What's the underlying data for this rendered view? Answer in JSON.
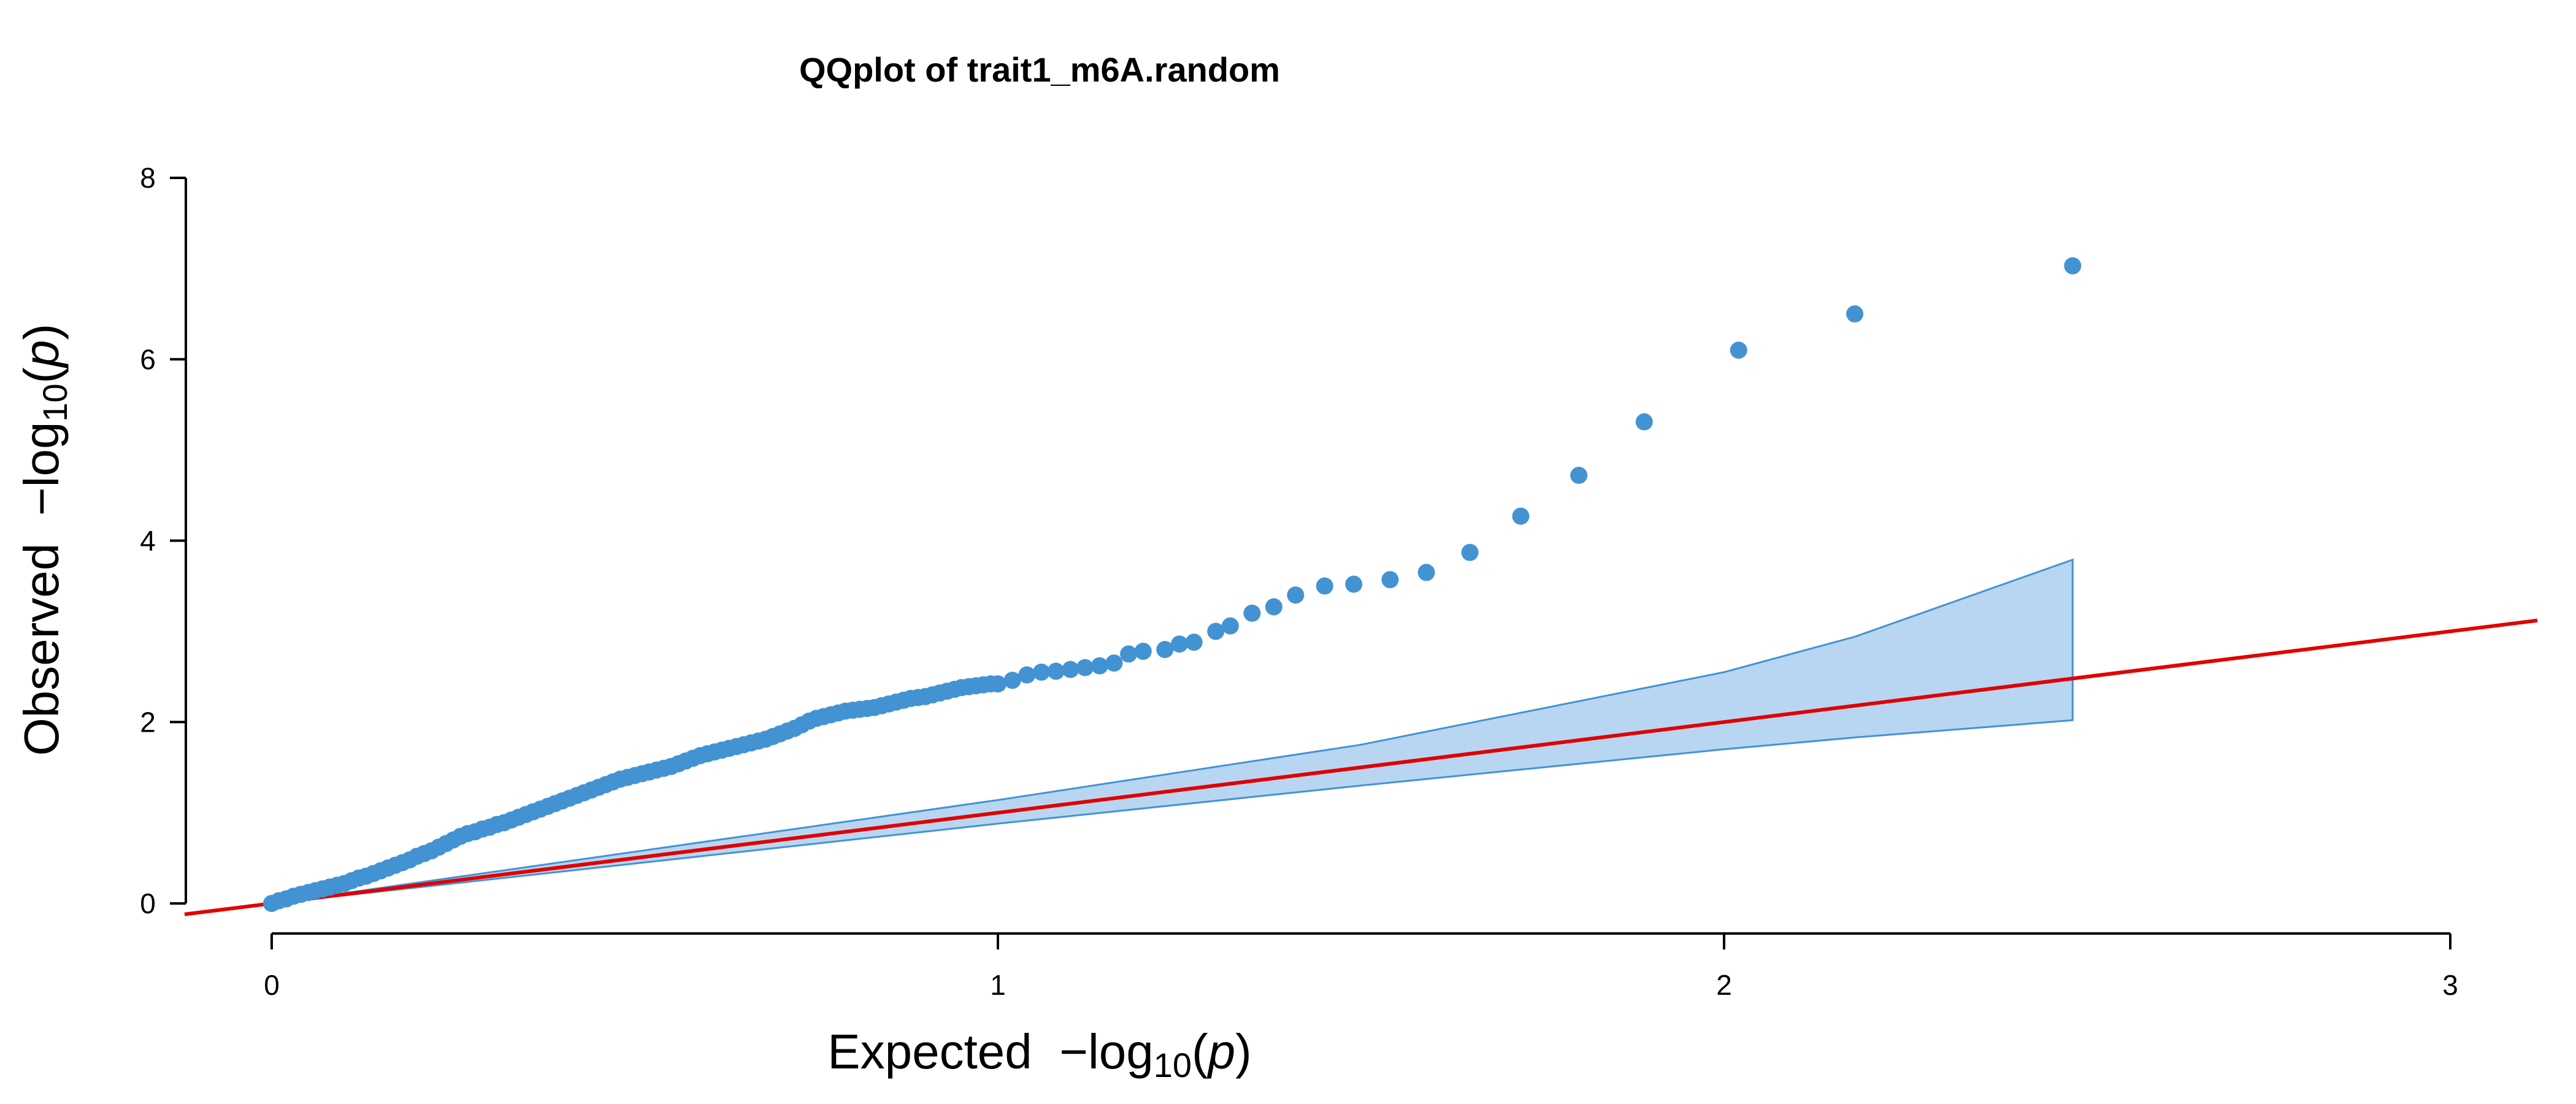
{
  "chart_data": {
    "type": "scatter",
    "title": "QQplot of trait1_m6A.random",
    "xlabel": {
      "prefix": "Expected  −log",
      "subscript": "10",
      "open": "(",
      "var": "p",
      "close": ")"
    },
    "ylabel": {
      "prefix": "Observed  −log",
      "subscript": "10",
      "open": "(",
      "var": "p",
      "close": ")"
    },
    "xlim": [
      0,
      3
    ],
    "ylim": [
      0,
      8
    ],
    "x_ticks": [
      0,
      1,
      2,
      3
    ],
    "y_ticks": [
      0,
      2,
      4,
      6,
      8
    ],
    "x_tick_labels": [
      "0",
      "1",
      "2",
      "3"
    ],
    "y_tick_labels": [
      "0",
      "2",
      "4",
      "6",
      "8"
    ],
    "grid": false,
    "colors": {
      "points": "#4393d3",
      "band_fill": "#b8d6f1",
      "band_stroke": "#4393d3",
      "reference_line": "#e00000",
      "axes": "#000000"
    },
    "reference_line": {
      "slope": 1,
      "intercept": 0
    },
    "confidence_band": {
      "x": [
        0,
        0.5,
        1.0,
        1.5,
        2.0,
        2.18,
        2.48
      ],
      "upper": [
        0,
        0.57,
        1.14,
        1.75,
        2.55,
        2.94,
        3.79
      ],
      "lower": [
        0,
        0.44,
        0.88,
        1.3,
        1.7,
        1.83,
        2.02
      ]
    },
    "series": [
      {
        "x": [
          0.0,
          0.01,
          0.02,
          0.03,
          0.04,
          0.05,
          0.06,
          0.07,
          0.08,
          0.09,
          0.1,
          0.11,
          0.12,
          0.13,
          0.14,
          0.15,
          0.16,
          0.17,
          0.18,
          0.19,
          0.2,
          0.21,
          0.22,
          0.23,
          0.24,
          0.25,
          0.26,
          0.27,
          0.28,
          0.29,
          0.3,
          0.31,
          0.32,
          0.33,
          0.34,
          0.35,
          0.36,
          0.37,
          0.38,
          0.39,
          0.4,
          0.41,
          0.42,
          0.43,
          0.44,
          0.45,
          0.46,
          0.47,
          0.48,
          0.49,
          0.5,
          0.51,
          0.52,
          0.53,
          0.54,
          0.55,
          0.56,
          0.57,
          0.58,
          0.59,
          0.6,
          0.61,
          0.62,
          0.63,
          0.64,
          0.65,
          0.66,
          0.67,
          0.68,
          0.69,
          0.7,
          0.71,
          0.72,
          0.73,
          0.74,
          0.75,
          0.76,
          0.77,
          0.78,
          0.79,
          0.8,
          0.81,
          0.82,
          0.83,
          0.84,
          0.85,
          0.86,
          0.87,
          0.88,
          0.89,
          0.9,
          0.91,
          0.92,
          0.93,
          0.94,
          0.95,
          0.96,
          0.97,
          0.98,
          0.99,
          1.0,
          1.02,
          1.04,
          1.06,
          1.08,
          1.1,
          1.12,
          1.14,
          1.16,
          1.18,
          1.2,
          1.23,
          1.25,
          1.27,
          1.3,
          1.32,
          1.35,
          1.38,
          1.41,
          1.45,
          1.49,
          1.54,
          1.59,
          1.65,
          1.72,
          1.8,
          1.89,
          2.02,
          2.18,
          2.48
        ],
        "y": [
          0.0,
          0.03,
          0.05,
          0.08,
          0.1,
          0.12,
          0.14,
          0.16,
          0.18,
          0.2,
          0.22,
          0.25,
          0.28,
          0.3,
          0.33,
          0.36,
          0.39,
          0.42,
          0.45,
          0.48,
          0.52,
          0.55,
          0.58,
          0.62,
          0.66,
          0.7,
          0.74,
          0.77,
          0.79,
          0.82,
          0.84,
          0.87,
          0.89,
          0.92,
          0.95,
          0.98,
          1.01,
          1.04,
          1.07,
          1.1,
          1.13,
          1.16,
          1.19,
          1.22,
          1.25,
          1.28,
          1.31,
          1.34,
          1.37,
          1.39,
          1.41,
          1.43,
          1.45,
          1.47,
          1.49,
          1.51,
          1.54,
          1.57,
          1.6,
          1.63,
          1.65,
          1.67,
          1.69,
          1.71,
          1.73,
          1.75,
          1.77,
          1.79,
          1.81,
          1.84,
          1.87,
          1.9,
          1.93,
          1.97,
          2.01,
          2.04,
          2.06,
          2.08,
          2.1,
          2.12,
          2.13,
          2.14,
          2.15,
          2.16,
          2.18,
          2.2,
          2.22,
          2.24,
          2.26,
          2.27,
          2.28,
          2.3,
          2.32,
          2.34,
          2.36,
          2.38,
          2.39,
          2.4,
          2.41,
          2.42,
          2.42,
          2.46,
          2.52,
          2.55,
          2.56,
          2.58,
          2.6,
          2.62,
          2.65,
          2.75,
          2.78,
          2.8,
          2.86,
          2.88,
          3.0,
          3.06,
          3.2,
          3.27,
          3.4,
          3.5,
          3.52,
          3.57,
          3.65,
          3.87,
          4.27,
          4.72,
          5.31,
          6.1,
          6.5,
          7.03
        ]
      }
    ]
  }
}
